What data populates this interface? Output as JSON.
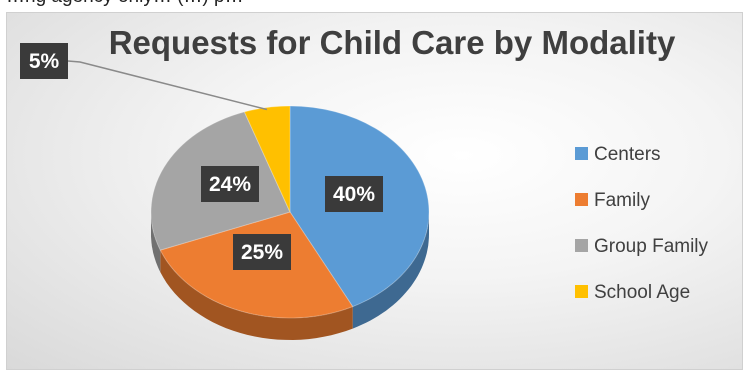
{
  "page_fragment": "…ng agency only…   (…)  p…",
  "colors": {
    "centers": "#5B9BD5",
    "family": "#ED7D31",
    "group_family": "#A5A5A5",
    "school_age": "#FFC000"
  },
  "chart_data": {
    "type": "pie",
    "title": "Requests for Child Care by Modality",
    "categories": [
      "Centers",
      "Family",
      "Group Family",
      "School Age"
    ],
    "values": [
      40,
      25,
      24,
      5
    ],
    "data_labels": [
      "40%",
      "25%",
      "24%",
      "5%"
    ],
    "legend_position": "right",
    "three_d": true
  }
}
